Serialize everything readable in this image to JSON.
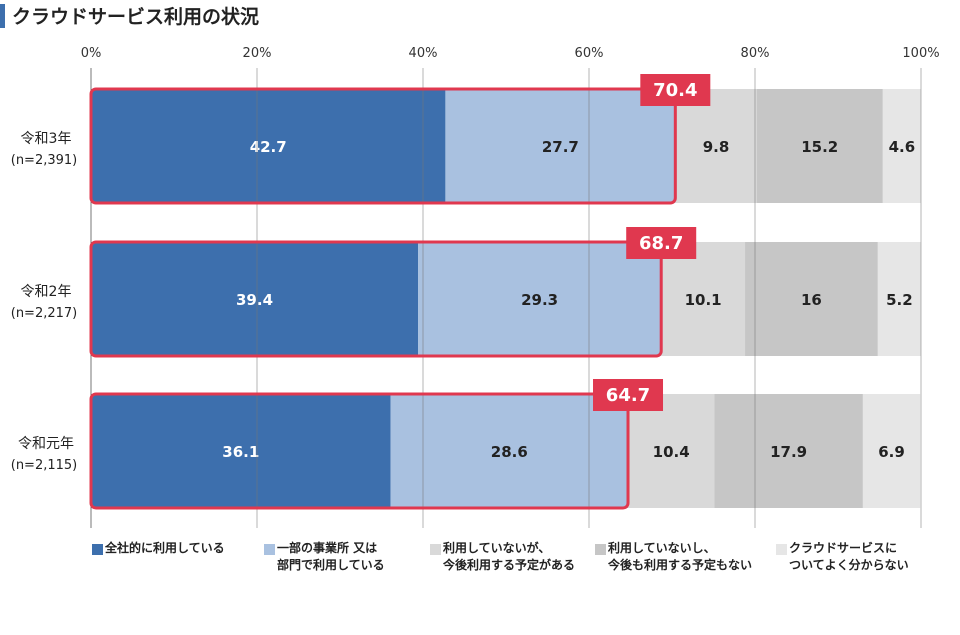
{
  "title": "クラウドサービス利用の状況",
  "chart_data": {
    "type": "bar",
    "orientation": "horizontal",
    "stacked": true,
    "title": "クラウドサービス利用の状況",
    "xlim": [
      0,
      100
    ],
    "x_ticks": [
      "0%",
      "20%",
      "40%",
      "60%",
      "80%",
      "100%"
    ],
    "grid": true,
    "legend_position": "bottom",
    "categories": [
      {
        "name": "令和3年",
        "n": "(n=2,391)"
      },
      {
        "name": "令和2年",
        "n": "(n=2,217)"
      },
      {
        "name": "令和元年",
        "n": "(n=2,115)"
      }
    ],
    "series": [
      {
        "name": "全社的に利用している",
        "label_lines": [
          "全社的に利用している"
        ],
        "color": "#3d6fad",
        "values": [
          42.7,
          39.4,
          36.1
        ]
      },
      {
        "name": "一部の事業所 又は部門で利用している",
        "label_lines": [
          "一部の事業所 又は",
          "部門で利用している"
        ],
        "color": "#a9c1e0",
        "values": [
          27.7,
          29.3,
          28.6
        ]
      },
      {
        "name": "利用していないが、今後利用する予定がある",
        "label_lines": [
          "利用していないが、",
          "今後利用する予定がある"
        ],
        "color": "#d9d9d9",
        "values": [
          9.8,
          10.1,
          10.4
        ]
      },
      {
        "name": "利用していないし、今後も利用する予定もない",
        "label_lines": [
          "利用していないし、",
          "今後も利用する予定もない"
        ],
        "color": "#c6c6c6",
        "values": [
          15.2,
          16.0,
          17.9
        ]
      },
      {
        "name": "クラウドサービスについてよく分からない",
        "label_lines": [
          "クラウドサービスに",
          "ついてよく分からない"
        ],
        "color": "#e6e6e6",
        "values": [
          4.6,
          5.2,
          6.9
        ]
      }
    ],
    "highlight": {
      "color": "#e0384f",
      "values": [
        "70.4",
        "68.7",
        "64.7"
      ],
      "series_covered": [
        0,
        1
      ]
    }
  }
}
